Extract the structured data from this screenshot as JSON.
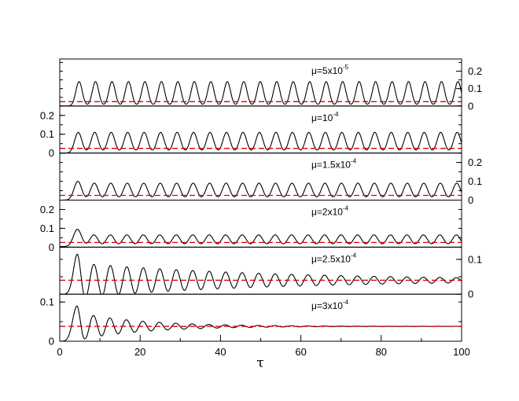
{
  "chart_data": {
    "type": "line",
    "xlabel": "τ",
    "xlim": [
      0,
      100
    ],
    "xticks": [
      0,
      20,
      40,
      60,
      80,
      100
    ],
    "colors": {
      "oscillation": "#000000",
      "reference_dashed": "#e00000"
    },
    "panels": [
      {
        "name": "mu-5e-5",
        "label_base": "μ=5x10",
        "label_exp": "-5",
        "ylim": [
          0,
          0.27
        ],
        "yticks": [
          "0",
          "0.1",
          "0.2"
        ],
        "ytick_values": [
          0,
          0.1,
          0.2
        ],
        "yaxis_side": "right",
        "series": {
          "baseline": 0.0,
          "peak": 0.14,
          "first_peak": 0.14,
          "period": 4.1,
          "first_peak_x": 4.8,
          "decay": 0.0,
          "mean": 0.025,
          "width": 0.8
        },
        "reference_y": 0.025
      },
      {
        "name": "mu-1e-4",
        "label_base": "μ=10",
        "label_exp": "-4",
        "ylim": [
          0,
          0.25
        ],
        "yticks": [
          "0",
          "0.1",
          "0.2"
        ],
        "ytick_values": [
          0,
          0.1,
          0.2
        ],
        "yaxis_side": "left",
        "series": {
          "baseline": 0.0,
          "peak": 0.11,
          "first_peak": 0.11,
          "period": 4.1,
          "first_peak_x": 4.6,
          "decay": 0.0,
          "mean": 0.025,
          "width": 0.9
        },
        "reference_y": 0.025
      },
      {
        "name": "mu-1.5e-4",
        "label_base": "μ=1.5x10",
        "label_exp": "-4",
        "ylim": [
          0,
          0.25
        ],
        "yticks": [
          "0",
          "0.1",
          "0.2"
        ],
        "ytick_values": [
          0,
          0.1,
          0.2
        ],
        "yaxis_side": "right",
        "series": {
          "baseline": 0.0,
          "peak": 0.09,
          "first_peak": 0.1,
          "period": 4.1,
          "first_peak_x": 4.5,
          "decay": 0.0,
          "mean": 0.025,
          "width": 0.95
        },
        "reference_y": 0.025
      },
      {
        "name": "mu-2e-4",
        "label_base": "μ=2x10",
        "label_exp": "-4",
        "ylim": [
          0,
          0.25
        ],
        "yticks": [
          "0",
          "0.1",
          "0.2"
        ],
        "ytick_values": [
          0,
          0.1,
          0.2
        ],
        "yaxis_side": "left",
        "series": {
          "baseline": 0.003,
          "peak": 0.065,
          "first_peak": 0.095,
          "period": 4.1,
          "first_peak_x": 4.4,
          "decay": 0.0,
          "mean": 0.025,
          "width": 1.0
        },
        "reference_y": 0.025
      },
      {
        "name": "mu-2.5e-4",
        "label_base": "μ=2.5x10",
        "label_exp": "-4",
        "ylim": [
          0,
          0.135
        ],
        "yticks": [
          "0",
          "0.1"
        ],
        "ytick_values": [
          0,
          0.1
        ],
        "yaxis_side": "right",
        "series": {
          "baseline": 0.0,
          "peak": 0.085,
          "first_peak": 0.115,
          "period": 4.1,
          "first_peak_x": 4.4,
          "decay": 0.02,
          "mean": 0.04,
          "width": 1.1
        },
        "reference_y": 0.04
      },
      {
        "name": "mu-3e-4",
        "label_base": "μ=3x10",
        "label_exp": "-4",
        "ylim": [
          0,
          0.12
        ],
        "yticks": [
          "0",
          "0.1"
        ],
        "ytick_values": [
          0,
          0.1
        ],
        "yaxis_side": "left",
        "series": {
          "baseline": 0.0,
          "peak": 0.07,
          "first_peak": 0.09,
          "period": 4.1,
          "first_peak_x": 4.3,
          "decay": 0.06,
          "mean": 0.038,
          "width": 1.2
        },
        "reference_y": 0.038
      }
    ]
  }
}
